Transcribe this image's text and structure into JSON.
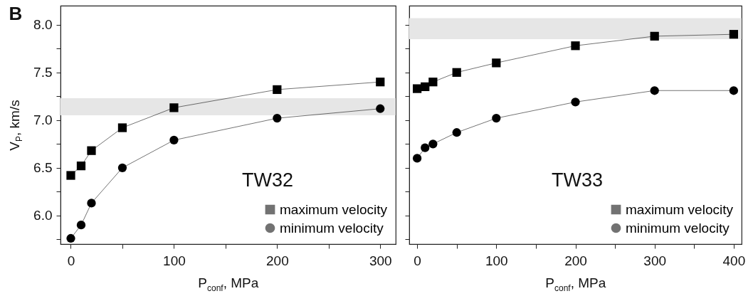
{
  "chart_data": [
    {
      "type": "line",
      "title": "B",
      "xlabel": "P$_{conf}$, MPa",
      "ylabel": "V$_{P}$, km/s",
      "annotations": [
        "TW32"
      ],
      "x": [
        0,
        10,
        20,
        50,
        100,
        200,
        300
      ],
      "series": [
        {
          "name": "maximum velocity",
          "color": "#000000",
          "marker": "square",
          "values": [
            6.42,
            6.52,
            6.68,
            6.92,
            7.13,
            7.32,
            7.4
          ]
        },
        {
          "name": "minimum velocity",
          "color": "#000000",
          "marker": "circle",
          "values": [
            5.76,
            5.9,
            6.13,
            6.5,
            6.79,
            7.02,
            7.12
          ]
        }
      ],
      "bands": [
        {
          "axis": "y",
          "from": 7.05,
          "to": 7.23,
          "color": "#e6e6e6"
        }
      ],
      "xlim": [
        -10,
        315
      ],
      "xticks": [
        0,
        {
          "value": 50,
          "label": null
        },
        100,
        {
          "value": 150,
          "label": null
        },
        200,
        {
          "value": 250,
          "label": null
        },
        300
      ],
      "ylim": [
        5.7,
        8.2
      ],
      "yticks": [
        {
          "value": 5.75,
          "label": null
        },
        {
          "value": 6,
          "label": "6.0"
        },
        {
          "value": 6.25,
          "label": null
        },
        {
          "value": 6.5,
          "label": "6.5"
        },
        {
          "value": 6.75,
          "label": null
        },
        {
          "value": 7,
          "label": "7.0"
        },
        {
          "value": 7.25,
          "label": null
        },
        {
          "value": 7.5,
          "label": "7.5"
        },
        {
          "value": 7.75,
          "label": null
        },
        {
          "value": 8,
          "label": "8.0"
        }
      ],
      "legend": "bottom right",
      "line_style": "solid"
    },
    {
      "type": "line",
      "xlabel": "P$_{conf}$, MPa",
      "annotations": [
        "TW33"
      ],
      "x": [
        0,
        10,
        20,
        50,
        100,
        200,
        300,
        400
      ],
      "series": [
        {
          "name": "maximum velocity",
          "color": "#000000",
          "marker": "square",
          "values": [
            7.33,
            7.35,
            7.4,
            7.5,
            7.6,
            7.78,
            7.88,
            7.9
          ]
        },
        {
          "name": "minimum velocity",
          "color": "#000000",
          "marker": "circle",
          "values": [
            6.6,
            6.71,
            6.75,
            6.87,
            7.02,
            7.19,
            7.31,
            7.31
          ]
        }
      ],
      "bands": [
        {
          "axis": "y",
          "from": 7.85,
          "to": 8.07,
          "color": "#e6e6e6"
        }
      ],
      "xlim": [
        -10,
        410
      ],
      "xticks": [
        0,
        {
          "value": 50,
          "label": null
        },
        100,
        {
          "value": 150,
          "label": null
        },
        200,
        {
          "value": 250,
          "label": null
        },
        300,
        {
          "value": 350,
          "label": null
        },
        400
      ],
      "ylim": [
        5.7,
        8.2
      ],
      "yticks": [
        {
          "value": 5.75,
          "label": null
        },
        {
          "value": 6.0,
          "label": null
        },
        {
          "value": 6.25,
          "label": null
        },
        {
          "value": 6.5,
          "label": null
        },
        {
          "value": 6.75,
          "label": null
        },
        {
          "value": 7.0,
          "label": null
        },
        {
          "value": 7.25,
          "label": null
        },
        {
          "value": 7.5,
          "label": null
        },
        {
          "value": 7.75,
          "label": null
        },
        {
          "value": 8.0,
          "label": null
        }
      ],
      "tick_labels": "x",
      "legend": "bottom right",
      "line_style": "solid"
    }
  ]
}
